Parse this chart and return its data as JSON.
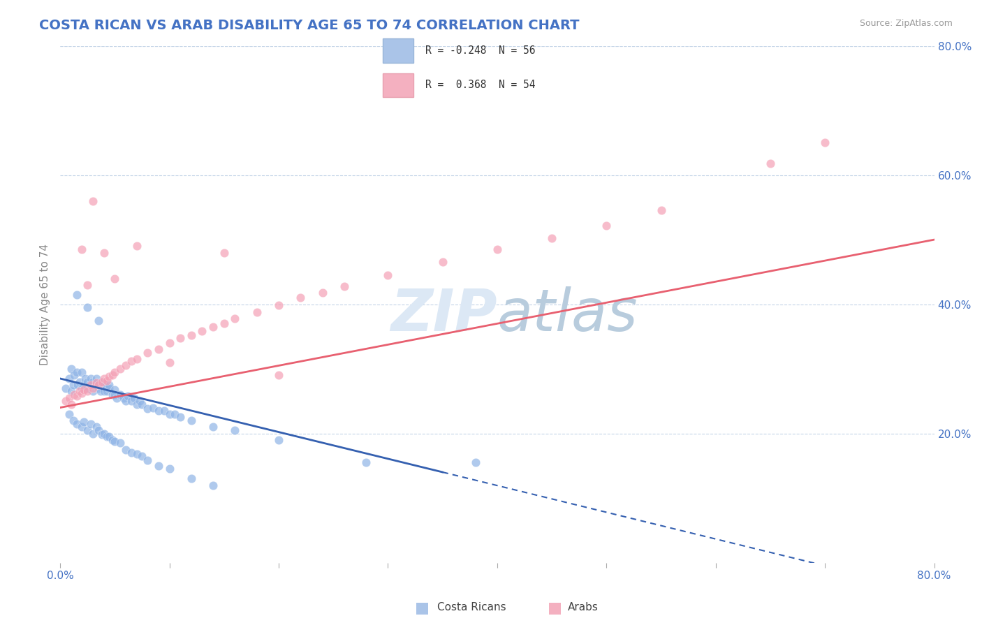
{
  "title": "COSTA RICAN VS ARAB DISABILITY AGE 65 TO 74 CORRELATION CHART",
  "source": "Source: ZipAtlas.com",
  "ylabel": "Disability Age 65 to 74",
  "xlim": [
    0,
    0.8
  ],
  "ylim": [
    0,
    0.8
  ],
  "xtick_positions": [
    0.0,
    0.1,
    0.2,
    0.3,
    0.4,
    0.5,
    0.6,
    0.7,
    0.8
  ],
  "xticklabels": [
    "0.0%",
    "",
    "",
    "",
    "",
    "",
    "",
    "",
    "80.0%"
  ],
  "ytick_positions": [
    0.2,
    0.4,
    0.6,
    0.8
  ],
  "yticklabels": [
    "20.0%",
    "40.0%",
    "60.0%",
    "80.0%"
  ],
  "costa_rican_color": "#8fb4e6",
  "arab_color": "#f4a0b5",
  "trend_cr_color": "#3560b0",
  "trend_arab_color": "#e86070",
  "background_color": "#ffffff",
  "grid_color": "#c5d5e8",
  "title_color": "#4472c4",
  "axis_color": "#4472c4",
  "source_color": "#999999",
  "watermark_color": "#dce8f5",
  "legend_cr_color": "#aac4e8",
  "legend_arab_color": "#f4b0c0"
}
